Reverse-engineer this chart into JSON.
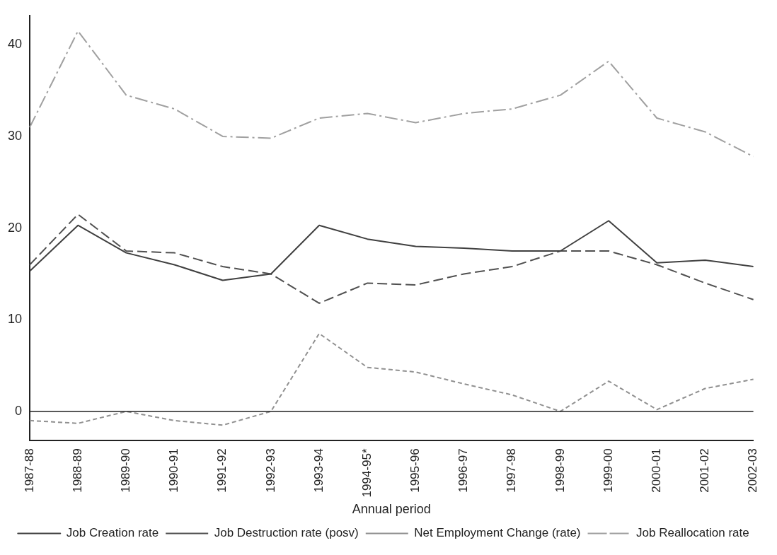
{
  "chart_data": {
    "type": "line",
    "xlabel": "Annual period",
    "categories": [
      "1987-88",
      "1988-89",
      "1989-90",
      "1990-91",
      "1991-92",
      "1992-93",
      "1993-94",
      "1994-95*",
      "1995-96",
      "1996-97",
      "1997-98",
      "1998-99",
      "1999-00",
      "2000-01",
      "2001-02",
      "2002-03"
    ],
    "series": [
      {
        "name": "Job Creation rate",
        "color": "#404040",
        "line_style": "solid",
        "values": [
          15.3,
          20.3,
          17.3,
          16,
          14.3,
          15,
          20.3,
          18.8,
          18,
          17.8,
          17.5,
          17.5,
          20.8,
          16.2,
          16.5,
          15.8
        ]
      },
      {
        "name": "Job Destruction rate (posv)",
        "color": "#505050",
        "line_style": "dashed",
        "values": [
          16,
          21.5,
          17.5,
          17.3,
          15.8,
          15,
          11.8,
          14,
          13.8,
          15,
          15.8,
          17.5,
          17.5,
          16,
          14,
          12.2
        ]
      },
      {
        "name": "Net Employment Change (rate)",
        "color": "#909090",
        "line_style": "dotted",
        "values": [
          -1,
          -1.3,
          0,
          -1,
          -1.5,
          0,
          8.5,
          4.8,
          4.3,
          3,
          1.8,
          0,
          3.3,
          0.2,
          2.5,
          3.5
        ]
      },
      {
        "name": "Job Reallocation rate",
        "color": "#a0a0a0",
        "line_style": "dashdot",
        "values": [
          31,
          41.5,
          34.5,
          33,
          30,
          29.8,
          32,
          32.5,
          31.5,
          32.5,
          33,
          34.5,
          38.2,
          32,
          30.5,
          27.8
        ]
      }
    ],
    "ylim": [
      -3.2,
      43.2
    ],
    "yticks": [
      0,
      10,
      20,
      30,
      40
    ],
    "grid": false,
    "legend": "bottom",
    "marker": "none",
    "ref_lines": [
      {
        "axis": "y",
        "value": 0,
        "color": "#202020"
      }
    ]
  }
}
